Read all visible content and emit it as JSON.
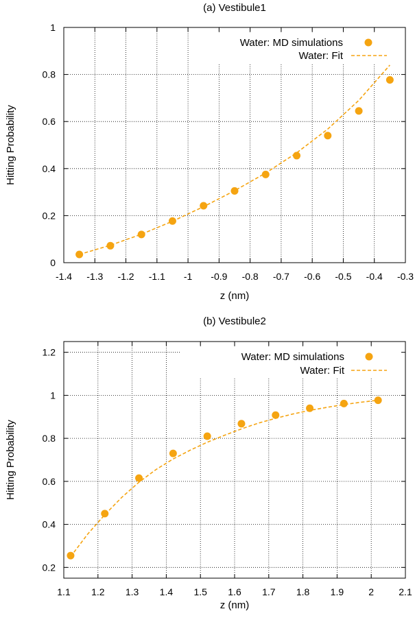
{
  "colors": {
    "series": "#f5a411",
    "grid": "#000000",
    "frame": "#000000"
  },
  "chart_data": [
    {
      "type": "scatter",
      "title": "(a) Vestibule1",
      "xlabel": "z (nm)",
      "ylabel": "Hitting Probability",
      "xlim": [
        -1.4,
        -0.3
      ],
      "ylim": [
        0,
        1
      ],
      "xticks": [
        -1.4,
        -1.3,
        -1.2,
        -1.1,
        -1,
        -0.9,
        -0.8,
        -0.7,
        -0.6,
        -0.5,
        -0.4,
        -0.3
      ],
      "xtick_labels": [
        "-1.4",
        "-1.3",
        "-1.2",
        "-1.1",
        "-1",
        "-0.9",
        "-0.8",
        "-0.7",
        "-0.6",
        "-0.5",
        "-0.4",
        "-0.3"
      ],
      "yticks": [
        0,
        0.2,
        0.4,
        0.6,
        0.8,
        1
      ],
      "ytick_labels": [
        "0",
        "0.2",
        "0.4",
        "0.6",
        "0.8",
        "1"
      ],
      "grid": true,
      "legend_position": "top-right",
      "series": [
        {
          "name": "Water: MD simulations",
          "kind": "points",
          "x": [
            -1.35,
            -1.25,
            -1.15,
            -1.05,
            -0.95,
            -0.85,
            -0.75,
            -0.65,
            -0.55,
            -0.45,
            -0.35
          ],
          "y": [
            0.035,
            0.072,
            0.12,
            0.177,
            0.242,
            0.305,
            0.375,
            0.455,
            0.54,
            0.645,
            0.777
          ]
        },
        {
          "name": "Water: Fit",
          "kind": "dashed-line",
          "x": [
            -1.35,
            -1.25,
            -1.15,
            -1.05,
            -0.95,
            -0.85,
            -0.75,
            -0.65,
            -0.55,
            -0.45,
            -0.35
          ],
          "y": [
            0.035,
            0.074,
            0.121,
            0.176,
            0.238,
            0.306,
            0.381,
            0.467,
            0.568,
            0.69,
            0.84
          ]
        }
      ]
    },
    {
      "type": "scatter",
      "title": "(b) Vestibule2",
      "xlabel": "z (nm)",
      "ylabel": "Hitting Probability",
      "xlim": [
        1.1,
        2.1
      ],
      "ylim": [
        0.15,
        1.25
      ],
      "xticks": [
        1.1,
        1.2,
        1.3,
        1.4,
        1.5,
        1.6,
        1.7,
        1.8,
        1.9,
        2,
        2.1
      ],
      "xtick_labels": [
        "1.1",
        "1.2",
        "1.3",
        "1.4",
        "1.5",
        "1.6",
        "1.7",
        "1.8",
        "1.9",
        "2",
        "2.1"
      ],
      "yticks": [
        0.2,
        0.4,
        0.6,
        0.8,
        1,
        1.2
      ],
      "ytick_labels": [
        "0.2",
        "0.4",
        "0.6",
        "0.8",
        "1",
        "1.2"
      ],
      "grid": true,
      "legend_position": "top-right",
      "series": [
        {
          "name": "Water: MD simulations",
          "kind": "points",
          "x": [
            1.12,
            1.22,
            1.32,
            1.42,
            1.52,
            1.62,
            1.72,
            1.82,
            1.92,
            2.02
          ],
          "y": [
            0.255,
            0.45,
            0.615,
            0.73,
            0.81,
            0.868,
            0.908,
            0.94,
            0.962,
            0.977
          ]
        },
        {
          "name": "Water: Fit",
          "kind": "dashed-line",
          "x": [
            1.12,
            1.17,
            1.22,
            1.27,
            1.32,
            1.37,
            1.42,
            1.47,
            1.52,
            1.57,
            1.62,
            1.67,
            1.72,
            1.77,
            1.82,
            1.87,
            1.92,
            1.97,
            2.02
          ],
          "y": [
            0.25,
            0.355,
            0.445,
            0.526,
            0.596,
            0.655,
            0.704,
            0.745,
            0.782,
            0.814,
            0.844,
            0.871,
            0.893,
            0.913,
            0.93,
            0.944,
            0.957,
            0.968,
            0.977
          ]
        }
      ]
    }
  ]
}
